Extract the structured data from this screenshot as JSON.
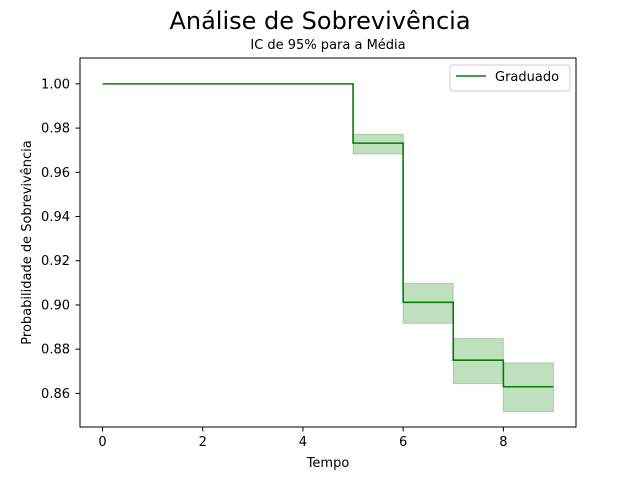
{
  "title": "Análise de Sobrevivência",
  "subtitle": "IC de 95% para a Média",
  "chart_data": {
    "type": "line",
    "subtype": "step-post",
    "xlabel": "Tempo",
    "ylabel": "Probabilidade de Sobrevivência",
    "xlim": [
      -0.45,
      9.45
    ],
    "ylim": [
      0.8448,
      1.0117
    ],
    "xticks": [
      0,
      2,
      4,
      6,
      8
    ],
    "xtick_labels": [
      "0",
      "2",
      "4",
      "6",
      "8"
    ],
    "yticks": [
      0.86,
      0.88,
      0.9,
      0.92,
      0.94,
      0.96,
      0.98,
      1.0
    ],
    "ytick_labels": [
      "0.86",
      "0.88",
      "0.90",
      "0.92",
      "0.94",
      "0.96",
      "0.98",
      "1.00"
    ],
    "grid": false,
    "legend_position": "top-right",
    "series": [
      {
        "name": "Graduado",
        "color": "#008000",
        "ci_color": "#008000",
        "x": [
          0,
          5,
          6,
          7,
          8,
          9
        ],
        "y": [
          1.0,
          0.9732,
          0.9012,
          0.875,
          0.863,
          0.863
        ],
        "ci_lower": [
          1.0,
          0.9683,
          0.8917,
          0.8644,
          0.8517,
          0.8517
        ],
        "ci_upper": [
          1.0,
          0.9772,
          0.9097,
          0.8848,
          0.8738,
          0.8738
        ]
      }
    ]
  }
}
